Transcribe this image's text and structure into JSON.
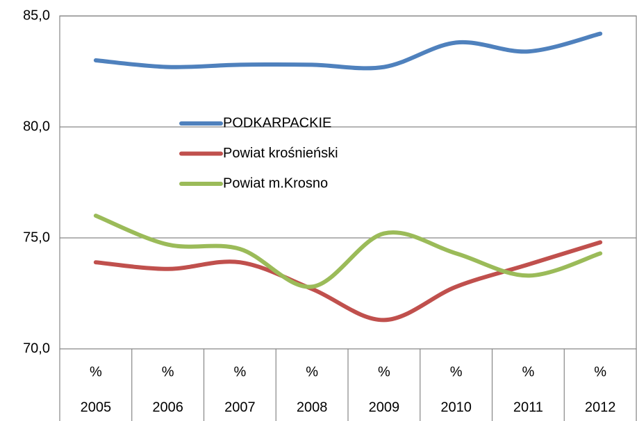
{
  "chart_data": {
    "type": "line",
    "categories": [
      "2005",
      "2006",
      "2007",
      "2008",
      "2009",
      "2010",
      "2011",
      "2012"
    ],
    "category_units": [
      "%",
      "%",
      "%",
      "%",
      "%",
      "%",
      "%",
      "%"
    ],
    "series": [
      {
        "name": "PODKARPACKIE",
        "color": "#4f81bd",
        "values": [
          83.0,
          82.7,
          82.8,
          82.8,
          82.7,
          83.8,
          83.4,
          84.2
        ]
      },
      {
        "name": "Powiat krośnieński",
        "color": "#c0504d",
        "values": [
          73.9,
          73.6,
          73.9,
          72.7,
          71.3,
          72.8,
          73.8,
          74.8
        ]
      },
      {
        "name": "Powiat m.Krosno",
        "color": "#9bbb59",
        "values": [
          76.0,
          74.7,
          74.5,
          72.8,
          75.2,
          74.3,
          73.3,
          74.3
        ]
      }
    ],
    "ylim": [
      70,
      85
    ],
    "yticks": [
      {
        "value": 70,
        "label": "70,0"
      },
      {
        "value": 75,
        "label": "75,0"
      },
      {
        "value": 80,
        "label": "80,0"
      },
      {
        "value": 85,
        "label": "85,0"
      }
    ],
    "grid": true,
    "smooth": true,
    "legend": "inside"
  }
}
